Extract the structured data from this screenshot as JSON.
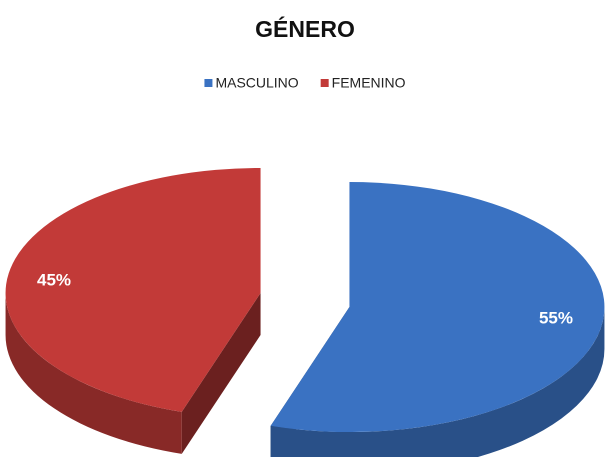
{
  "chart_data": {
    "type": "pie",
    "title": "GÉNERO",
    "categories": [
      "MASCULINO",
      "FEMENINO"
    ],
    "values": [
      55,
      45
    ],
    "value_labels": [
      "55%",
      "45%"
    ],
    "colors": [
      "#3a72c2",
      "#c23a38"
    ],
    "legend": "top"
  }
}
